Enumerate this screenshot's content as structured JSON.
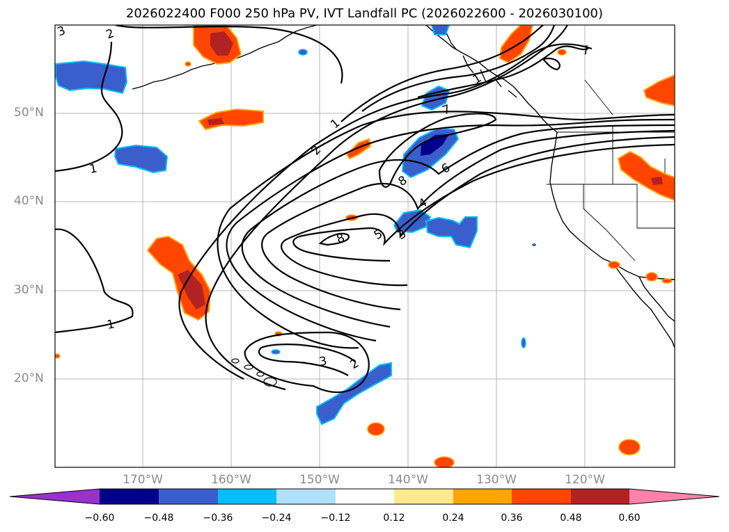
{
  "title": "2026022400 F000 250 hPa PV, IVT Landfall PC (2026022600 - 2026030100)",
  "lat_labels": [
    "50°N",
    "40°N",
    "30°N",
    "20°N"
  ],
  "lon_labels": [
    "170°W",
    "160°W",
    "150°W",
    "140°W",
    "130°W",
    "120°W"
  ],
  "contour_labels": [
    "3",
    "2",
    "1",
    "1",
    "2",
    "1",
    "8",
    "7",
    "6",
    "8",
    "4",
    "5",
    "3",
    "3",
    "2",
    "1",
    "7"
  ],
  "colorbar": {
    "ticks": [
      "−0.60",
      "−0.48",
      "−0.36",
      "−0.24",
      "−0.12",
      "0.12",
      "0.24",
      "0.36",
      "0.48",
      "0.60"
    ],
    "colors": [
      "#9932cc",
      "#00008b",
      "#3a5fcd",
      "#00bfff",
      "#b0e0fa",
      "#ffffff",
      "#ffe98c",
      "#ffa500",
      "#ff4500",
      "#b22222",
      "#ff82ab"
    ]
  },
  "colors": {
    "neg_dark": "#00008b",
    "neg_mid": "#3a5fcd",
    "neg_light": "#00bfff",
    "pos_light": "#ffa500",
    "pos_mid": "#ff4500",
    "pos_dark": "#b22222"
  }
}
